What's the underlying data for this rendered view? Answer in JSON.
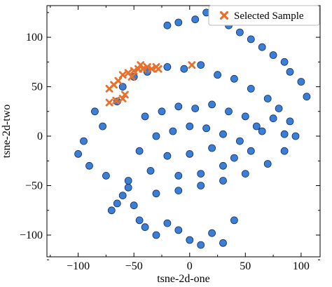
{
  "chart_data": {
    "type": "scatter",
    "xlabel": "tsne-2d-one",
    "ylabel": "tsne-2d-two",
    "xlim": [
      -128,
      117
    ],
    "ylim": [
      -122,
      132
    ],
    "xticks": [
      -100,
      -50,
      0,
      50,
      100
    ],
    "yticks": [
      -100,
      -50,
      0,
      50,
      100
    ],
    "legend": {
      "label": "Selected Sample",
      "position": "top-right"
    },
    "colors": {
      "point_fill": "#3a7fd5",
      "point_edge": "#14306a",
      "selected": "#e8702a"
    },
    "clusters": [
      {
        "x": [
          -95,
          -78,
          -85,
          -65,
          -60,
          -50,
          -38,
          -20,
          -5,
          10,
          25,
          40,
          55,
          70,
          80,
          90,
          95,
          85,
          70,
          50,
          30,
          10,
          -10,
          -30,
          -55,
          -75,
          -90,
          -100
        ],
        "y": [
          -5,
          10,
          25,
          35,
          50,
          60,
          65,
          70,
          68,
          72,
          62,
          58,
          48,
          38,
          28,
          15,
          0,
          -15,
          -28,
          -38,
          -45,
          -50,
          -55,
          -58,
          -52,
          -40,
          -30,
          -18
        ]
      },
      {
        "x": [
          -40,
          -25,
          -10,
          5,
          20,
          35,
          50,
          60,
          -30,
          -15,
          0,
          15,
          30,
          45,
          -45,
          -20,
          0,
          20,
          40,
          -35,
          -10,
          10,
          30,
          55,
          65,
          75,
          85
        ],
        "y": [
          20,
          25,
          30,
          28,
          32,
          25,
          20,
          10,
          0,
          5,
          10,
          8,
          2,
          -5,
          -15,
          -20,
          -18,
          -12,
          -22,
          -35,
          -40,
          -38,
          -30,
          -15,
          5,
          18,
          2
        ]
      },
      {
        "x": [
          -60,
          -50,
          -45,
          -70,
          -40,
          -30,
          -20,
          -10,
          0,
          10,
          20,
          30,
          40,
          -55,
          -65
        ],
        "y": [
          -60,
          -70,
          -85,
          -75,
          -92,
          -100,
          -88,
          -95,
          -105,
          -110,
          -98,
          -108,
          -85,
          -45,
          -68
        ]
      },
      {
        "x": [
          -20,
          -10,
          5,
          15,
          25,
          35,
          45,
          55,
          65,
          75,
          85,
          90,
          100,
          105
        ],
        "y": [
          112,
          115,
          118,
          125,
          128,
          112,
          105,
          98,
          90,
          82,
          75,
          65,
          55,
          40
        ]
      }
    ],
    "selected_points": {
      "x": [
        -72,
        -68,
        -64,
        -60,
        -55,
        -52,
        -50,
        -46,
        -44,
        -42,
        -38,
        -34,
        -30,
        -28,
        2,
        -72,
        -66,
        -60,
        -58
      ],
      "y": [
        48,
        52,
        56,
        62,
        64,
        60,
        66,
        68,
        72,
        68,
        70,
        68,
        70,
        68,
        72,
        34,
        36,
        38,
        42
      ]
    }
  }
}
